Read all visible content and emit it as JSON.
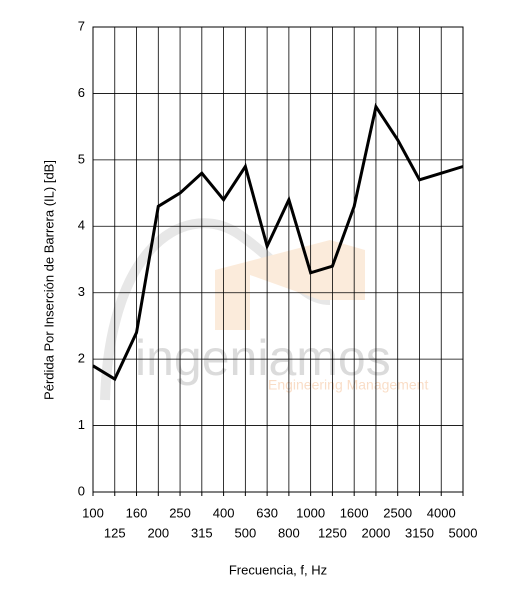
{
  "chart_data": {
    "type": "line",
    "y_label": "Pérdida Por Inserción de Barrera (IL) [dB]",
    "x_label": "Frecuencia, f, Hz",
    "categories": [
      "100",
      "125",
      "160",
      "200",
      "250",
      "315",
      "400",
      "500",
      "630",
      "800",
      "1000",
      "1250",
      "1600",
      "2000",
      "2500",
      "3150",
      "4000",
      "5000"
    ],
    "values": [
      1.9,
      1.7,
      2.4,
      4.3,
      4.5,
      4.8,
      4.4,
      4.9,
      3.7,
      4.4,
      3.3,
      3.4,
      4.3,
      5.8,
      5.3,
      4.7,
      4.8,
      4.9
    ],
    "color": "#000000",
    "ylim": [
      0,
      7
    ],
    "yticks": [
      0,
      1,
      2,
      3,
      4,
      5,
      6,
      7
    ],
    "grid": true,
    "watermark": {
      "text": "ingeniamos",
      "subtitle": "Engineering Management"
    }
  }
}
